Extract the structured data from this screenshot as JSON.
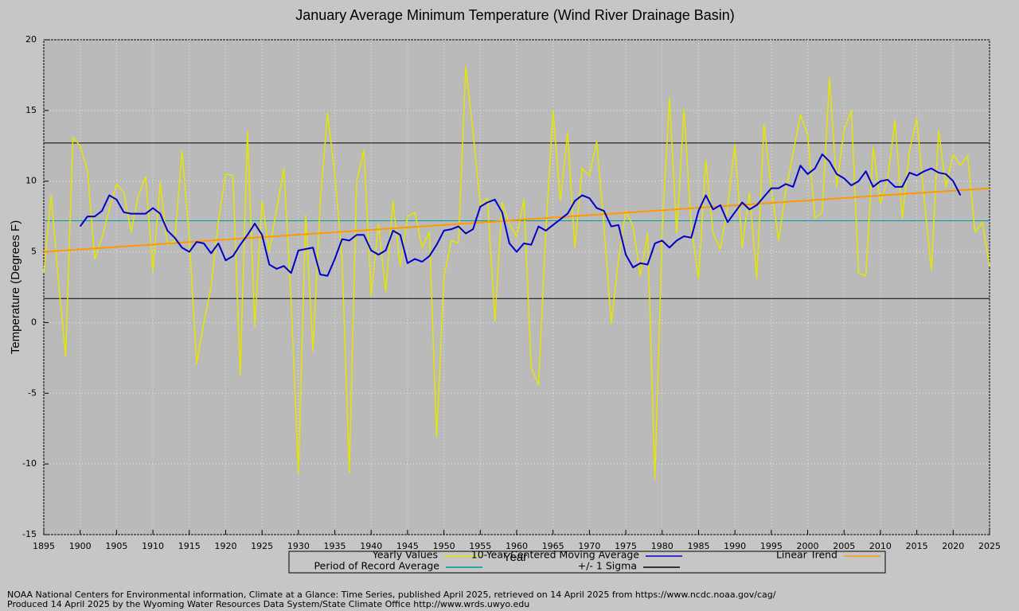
{
  "chart_data": {
    "type": "line",
    "title": "January Average Minimum Temperature (Wind River Drainage Basin)",
    "x_label": "Year",
    "y_label": "Temperature (Degrees F)",
    "x": [
      1895,
      1896,
      1897,
      1898,
      1899,
      1900,
      1901,
      1902,
      1903,
      1904,
      1905,
      1906,
      1907,
      1908,
      1909,
      1910,
      1911,
      1912,
      1913,
      1914,
      1915,
      1916,
      1917,
      1918,
      1919,
      1920,
      1921,
      1922,
      1923,
      1924,
      1925,
      1926,
      1927,
      1928,
      1929,
      1930,
      1931,
      1932,
      1933,
      1934,
      1935,
      1936,
      1937,
      1938,
      1939,
      1940,
      1941,
      1942,
      1943,
      1944,
      1945,
      1946,
      1947,
      1948,
      1949,
      1950,
      1951,
      1952,
      1953,
      1954,
      1955,
      1956,
      1957,
      1958,
      1959,
      1960,
      1961,
      1962,
      1963,
      1964,
      1965,
      1966,
      1967,
      1968,
      1969,
      1970,
      1971,
      1972,
      1973,
      1974,
      1975,
      1976,
      1977,
      1978,
      1979,
      1980,
      1981,
      1982,
      1983,
      1984,
      1985,
      1986,
      1987,
      1988,
      1989,
      1990,
      1991,
      1992,
      1993,
      1994,
      1995,
      1996,
      1997,
      1998,
      1999,
      2000,
      2001,
      2002,
      2003,
      2004,
      2005,
      2006,
      2007,
      2008,
      2009,
      2010,
      2011,
      2012,
      2013,
      2014,
      2015,
      2016,
      2017,
      2018,
      2019,
      2020,
      2021,
      2022,
      2023,
      2024,
      2025
    ],
    "series": [
      {
        "name": "Yearly Values",
        "color": "#e6e600",
        "values": [
          3.5,
          9,
          3,
          -2.4,
          13.1,
          12.5,
          10.8,
          4.5,
          6,
          8,
          9.8,
          9.2,
          6.4,
          9,
          10.3,
          3.6,
          9.9,
          5.5,
          5.8,
          12.1,
          6,
          -2.9,
          0,
          2.5,
          7.2,
          10.5,
          10.4,
          -3.7,
          13.5,
          -0.3,
          8.6,
          5,
          8,
          10.9,
          1.5,
          -10.7,
          7.6,
          -2,
          8.5,
          14.8,
          10.5,
          4.5,
          -10.6,
          10,
          12.2,
          1.9,
          7,
          2.2,
          8.6,
          4,
          7.5,
          7.8,
          5.3,
          6.4,
          -8.1,
          3.2,
          5.8,
          5.6,
          18.1,
          13.5,
          8.3,
          8.8,
          0.1,
          8.5,
          7,
          6.1,
          8.7,
          -3.2,
          -4.4,
          6.3,
          15,
          8.6,
          13.4,
          5.3,
          10.9,
          10.4,
          12.8,
          6.9,
          -0.1,
          4.5,
          7.9,
          6.8,
          3.3,
          6.3,
          -11.1,
          6.5,
          15.9,
          6.3,
          15.1,
          6.8,
          3.1,
          11.5,
          6.3,
          5.2,
          8.2,
          12.6,
          5.3,
          9.2,
          3.1,
          14,
          9.5,
          5.8,
          9.3,
          12,
          14.7,
          13.3,
          7.4,
          7.8,
          17.3,
          9.6,
          13.6,
          15,
          3.5,
          3.3,
          12.4,
          8.4,
          10.2,
          14.3,
          7.4,
          12.2,
          14.4,
          8.8,
          3.7,
          13.6,
          9.6,
          11.9,
          11.1,
          11.8,
          6.4,
          7.1,
          4
        ]
      },
      {
        "name": "10-Year Centered Moving Average",
        "color": "#0000cc",
        "values": [
          null,
          null,
          null,
          null,
          null,
          6.8,
          7.5,
          7.5,
          7.9,
          9.0,
          8.7,
          7.8,
          7.7,
          7.7,
          7.7,
          8.1,
          7.7,
          6.5,
          6.0,
          5.3,
          5.0,
          5.7,
          5.6,
          4.9,
          5.6,
          4.4,
          4.7,
          5.5,
          6.2,
          7.0,
          6.2,
          4.1,
          3.8,
          4.0,
          3.5,
          5.1,
          5.2,
          5.3,
          3.4,
          3.3,
          4.5,
          5.9,
          5.8,
          6.2,
          6.2,
          5.1,
          4.8,
          5.1,
          6.5,
          6.2,
          4.2,
          4.5,
          4.3,
          4.7,
          5.5,
          6.5,
          6.6,
          6.8,
          6.3,
          6.6,
          8.2,
          8.5,
          8.7,
          7.8,
          5.6,
          5.0,
          5.6,
          5.5,
          6.8,
          6.5,
          6.9,
          7.3,
          7.7,
          8.6,
          9.0,
          8.8,
          8.1,
          7.9,
          6.8,
          6.9,
          4.8,
          3.9,
          4.2,
          4.1,
          5.6,
          5.8,
          5.3,
          5.8,
          6.1,
          6.0,
          7.9,
          9.0,
          8.0,
          8.3,
          7.1,
          7.8,
          8.5,
          8.0,
          8.3,
          8.9,
          9.5,
          9.5,
          9.8,
          9.6,
          11.1,
          10.5,
          10.9,
          11.9,
          11.4,
          10.5,
          10.2,
          9.7,
          10.0,
          10.7,
          9.6,
          10.0,
          10.1,
          9.6,
          9.6,
          10.6,
          10.4,
          10.7,
          10.9,
          10.6,
          10.5,
          10.0,
          9.0,
          null,
          null,
          null,
          null
        ]
      },
      {
        "name": "Linear Trend",
        "color": "#ff9900",
        "x": [
          1895,
          2025
        ],
        "values": [
          5.0,
          9.5
        ]
      },
      {
        "name": "Period of Record Average",
        "color": "#009999",
        "x": [
          1895,
          2025
        ],
        "values": [
          7.2,
          7.2
        ]
      },
      {
        "name": "+/- 1 Sigma",
        "color": "#000000",
        "x": [
          1895,
          2025
        ],
        "values": [
          12.7,
          12.7
        ],
        "lower": [
          1.7,
          1.7
        ]
      }
    ],
    "xlim": [
      1895,
      2025
    ],
    "xticks": [
      1895,
      1900,
      1905,
      1910,
      1915,
      1920,
      1925,
      1930,
      1935,
      1940,
      1945,
      1950,
      1955,
      1960,
      1965,
      1970,
      1975,
      1980,
      1985,
      1990,
      1995,
      2000,
      2005,
      2010,
      2015,
      2020,
      2025
    ],
    "ylim": [
      -15,
      20
    ],
    "yticks": [
      -15,
      -10,
      -5,
      0,
      5,
      10,
      15,
      20
    ],
    "grid": true,
    "legend": "bottom",
    "footer": [
      "NOAA National Centers for Environmental information, Climate at a Glance: Time Series, published April 2025, retrieved on 14 April 2025 from https://www.ncdc.noaa.gov/cag/",
      "Produced 14 April 2025 by the Wyoming Water Resources Data System/State Climate Office http://www.wrds.uwyo.edu"
    ]
  }
}
